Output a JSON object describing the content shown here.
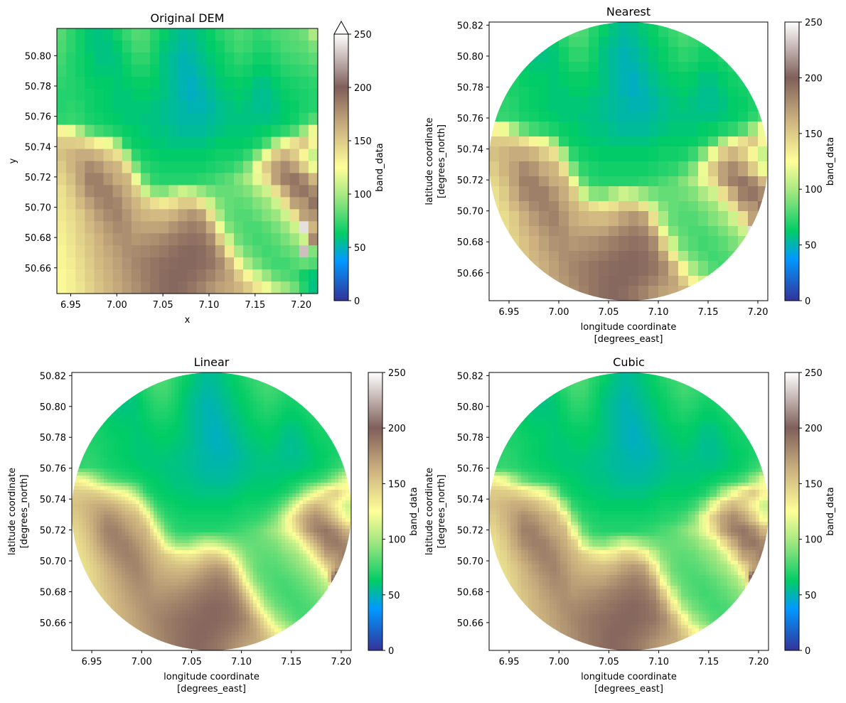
{
  "figure": {
    "colormap": "terrain",
    "colormap_stops": [
      "#333399",
      "#0099ff",
      "#00cc66",
      "#99e57f",
      "#ffff99",
      "#ccb17f",
      "#7f5f5a",
      "#ffffff"
    ],
    "fill_color": "#3aa65a"
  },
  "chart_data": [
    {
      "type": "heatmap",
      "title": "Original DEM",
      "xlabel": "x",
      "ylabel": "y",
      "xticks": [
        "6.95",
        "7.00",
        "7.05",
        "7.10",
        "7.15",
        "7.20"
      ],
      "yticks": [
        "50.66",
        "50.68",
        "50.70",
        "50.72",
        "50.74",
        "50.76",
        "50.78",
        "50.80"
      ],
      "xlim": [
        6.935,
        7.218
      ],
      "ylim": [
        50.643,
        50.818
      ],
      "clipped_to_circle": false,
      "colorbar": {
        "label": "band_data",
        "ticks": [
          "0",
          "50",
          "100",
          "150",
          "200",
          "250"
        ],
        "range": [
          0,
          250
        ],
        "extend": "max"
      },
      "grid": {
        "nx": 28,
        "ny": 22
      },
      "values": [
        [
          80,
          72,
          66,
          60,
          58,
          60,
          66,
          74,
          80,
          78,
          70,
          64,
          58,
          54,
          56,
          60,
          64,
          70,
          74,
          78,
          76,
          72,
          74,
          78,
          80,
          82,
          86,
          100
        ],
        [
          78,
          72,
          66,
          60,
          58,
          58,
          62,
          70,
          76,
          76,
          68,
          60,
          56,
          52,
          54,
          58,
          62,
          66,
          72,
          76,
          74,
          70,
          70,
          74,
          78,
          80,
          82,
          88
        ],
        [
          76,
          70,
          66,
          62,
          58,
          58,
          60,
          66,
          72,
          72,
          66,
          58,
          54,
          50,
          52,
          56,
          60,
          64,
          68,
          72,
          70,
          66,
          66,
          70,
          74,
          76,
          78,
          82
        ],
        [
          74,
          70,
          66,
          62,
          60,
          60,
          60,
          64,
          68,
          68,
          64,
          58,
          54,
          50,
          50,
          54,
          58,
          62,
          66,
          68,
          66,
          62,
          62,
          66,
          70,
          72,
          74,
          76
        ],
        [
          72,
          70,
          68,
          64,
          62,
          62,
          60,
          62,
          64,
          64,
          62,
          58,
          54,
          50,
          48,
          52,
          56,
          60,
          62,
          64,
          62,
          58,
          58,
          62,
          66,
          68,
          70,
          72
        ],
        [
          70,
          70,
          68,
          66,
          64,
          62,
          60,
          60,
          62,
          62,
          60,
          58,
          54,
          50,
          48,
          50,
          54,
          58,
          60,
          62,
          60,
          56,
          56,
          60,
          64,
          66,
          68,
          70
        ],
        [
          70,
          72,
          70,
          66,
          64,
          62,
          60,
          60,
          60,
          60,
          58,
          56,
          54,
          52,
          50,
          50,
          52,
          56,
          58,
          60,
          58,
          56,
          56,
          58,
          62,
          64,
          68,
          70
        ],
        [
          72,
          74,
          72,
          68,
          66,
          64,
          62,
          60,
          60,
          58,
          58,
          56,
          54,
          52,
          52,
          52,
          54,
          56,
          58,
          58,
          58,
          58,
          58,
          60,
          62,
          66,
          72,
          80
        ],
        [
          130,
          120,
          100,
          84,
          76,
          72,
          68,
          64,
          62,
          60,
          58,
          58,
          56,
          54,
          54,
          54,
          56,
          58,
          60,
          60,
          60,
          62,
          64,
          68,
          72,
          80,
          96,
          120
        ],
        [
          150,
          150,
          148,
          140,
          130,
          120,
          96,
          70,
          64,
          62,
          60,
          60,
          58,
          58,
          58,
          58,
          60,
          62,
          62,
          62,
          64,
          68,
          78,
          100,
          120,
          140,
          150,
          130
        ],
        [
          155,
          160,
          165,
          165,
          160,
          150,
          140,
          100,
          72,
          66,
          64,
          62,
          62,
          62,
          62,
          62,
          64,
          66,
          66,
          68,
          74,
          90,
          120,
          150,
          160,
          150,
          130,
          110
        ],
        [
          150,
          160,
          170,
          180,
          175,
          165,
          160,
          140,
          90,
          72,
          68,
          66,
          66,
          66,
          66,
          66,
          68,
          70,
          72,
          78,
          90,
          120,
          150,
          170,
          180,
          170,
          150,
          120
        ],
        [
          145,
          155,
          170,
          185,
          185,
          175,
          165,
          160,
          120,
          84,
          72,
          70,
          70,
          70,
          70,
          72,
          74,
          78,
          82,
          90,
          100,
          118,
          140,
          170,
          185,
          190,
          180,
          160
        ],
        [
          140,
          150,
          165,
          180,
          185,
          185,
          175,
          165,
          150,
          110,
          92,
          90,
          100,
          110,
          105,
          95,
          88,
          84,
          84,
          86,
          90,
          100,
          110,
          140,
          165,
          185,
          190,
          180
        ],
        [
          138,
          145,
          158,
          170,
          180,
          185,
          182,
          170,
          160,
          150,
          140,
          135,
          140,
          150,
          150,
          138,
          110,
          90,
          84,
          82,
          84,
          90,
          96,
          110,
          140,
          170,
          175,
          190
        ],
        [
          136,
          142,
          150,
          162,
          172,
          180,
          184,
          175,
          165,
          160,
          158,
          158,
          162,
          170,
          175,
          170,
          140,
          100,
          84,
          80,
          80,
          84,
          90,
          96,
          110,
          140,
          170,
          175
        ],
        [
          134,
          140,
          148,
          158,
          166,
          174,
          180,
          178,
          170,
          168,
          168,
          170,
          176,
          182,
          186,
          182,
          165,
          120,
          90,
          82,
          78,
          78,
          82,
          88,
          96,
          110,
          240,
          160
        ],
        [
          132,
          138,
          146,
          154,
          162,
          170,
          176,
          178,
          174,
          176,
          178,
          182,
          186,
          190,
          192,
          190,
          180,
          150,
          110,
          86,
          80,
          76,
          78,
          82,
          88,
          96,
          110,
          180
        ],
        [
          130,
          136,
          144,
          152,
          160,
          166,
          172,
          178,
          180,
          182,
          185,
          188,
          192,
          195,
          196,
          194,
          188,
          170,
          135,
          100,
          86,
          80,
          76,
          78,
          82,
          86,
          230,
          90
        ],
        [
          130,
          134,
          142,
          150,
          158,
          164,
          170,
          176,
          182,
          186,
          190,
          193,
          195,
          196,
          196,
          194,
          190,
          180,
          160,
          130,
          100,
          88,
          80,
          76,
          76,
          80,
          84,
          80
        ],
        [
          128,
          132,
          140,
          148,
          156,
          162,
          168,
          174,
          180,
          186,
          190,
          194,
          196,
          196,
          194,
          190,
          184,
          176,
          168,
          150,
          130,
          110,
          95,
          84,
          80,
          76,
          66,
          60
        ],
        [
          128,
          132,
          138,
          146,
          154,
          160,
          166,
          172,
          178,
          184,
          190,
          194,
          196,
          194,
          190,
          184,
          176,
          170,
          166,
          160,
          150,
          136,
          120,
          105,
          96,
          86,
          70,
          58
        ]
      ]
    },
    {
      "type": "heatmap",
      "title": "Nearest",
      "xlabel": "longitude coordinate\n[degrees_east]",
      "ylabel": "latitude coordinate\n[degrees_north]",
      "xticks": [
        "6.95",
        "7.00",
        "7.05",
        "7.10",
        "7.15",
        "7.20"
      ],
      "yticks": [
        "50.66",
        "50.68",
        "50.70",
        "50.72",
        "50.74",
        "50.76",
        "50.78",
        "50.80",
        "50.82"
      ],
      "xlim": [
        6.93,
        7.21
      ],
      "ylim": [
        50.642,
        50.822
      ],
      "clipped_to_circle": true,
      "colorbar": {
        "label": "band_data",
        "ticks": [
          "0",
          "50",
          "100",
          "150",
          "200",
          "250"
        ],
        "range": [
          0,
          250
        ],
        "extend": "none"
      },
      "interpolation": "nearest"
    },
    {
      "type": "heatmap",
      "title": "Linear",
      "xlabel": "longitude coordinate\n[degrees_east]",
      "ylabel": "latitude coordinate\n[degrees_north]",
      "xticks": [
        "6.95",
        "7.00",
        "7.05",
        "7.10",
        "7.15",
        "7.20"
      ],
      "yticks": [
        "50.66",
        "50.68",
        "50.70",
        "50.72",
        "50.74",
        "50.76",
        "50.78",
        "50.80",
        "50.82"
      ],
      "xlim": [
        6.93,
        7.21
      ],
      "ylim": [
        50.642,
        50.822
      ],
      "clipped_to_circle": true,
      "colorbar": {
        "label": "band_data",
        "ticks": [
          "0",
          "50",
          "100",
          "150",
          "200",
          "250"
        ],
        "range": [
          0,
          250
        ],
        "extend": "none"
      },
      "interpolation": "linear"
    },
    {
      "type": "heatmap",
      "title": "Cubic",
      "xlabel": "longitude coordinate\n[degrees_east]",
      "ylabel": "latitude coordinate\n[degrees_north]",
      "xticks": [
        "6.95",
        "7.00",
        "7.05",
        "7.10",
        "7.15",
        "7.20"
      ],
      "yticks": [
        "50.66",
        "50.68",
        "50.70",
        "50.72",
        "50.74",
        "50.76",
        "50.78",
        "50.80",
        "50.82"
      ],
      "xlim": [
        6.93,
        7.21
      ],
      "ylim": [
        50.642,
        50.822
      ],
      "clipped_to_circle": true,
      "colorbar": {
        "label": "band_data",
        "ticks": [
          "0",
          "50",
          "100",
          "150",
          "200",
          "250"
        ],
        "range": [
          0,
          250
        ],
        "extend": "none"
      },
      "interpolation": "cubic"
    }
  ]
}
